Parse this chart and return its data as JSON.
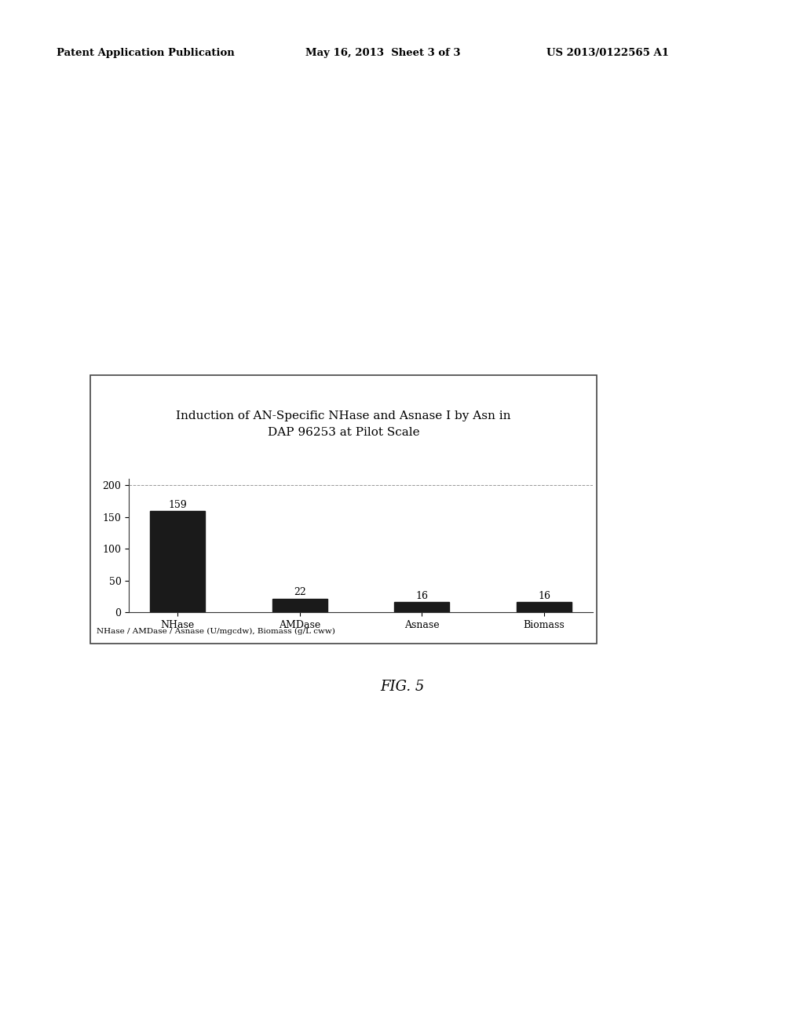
{
  "title_line1": "Induction of AN-Specific NHase and Asnase I by Asn in",
  "title_line2": "DAP 96253 at Pilot Scale",
  "categories": [
    "NHase",
    "AMDase",
    "Asnase",
    "Biomass"
  ],
  "values": [
    159,
    22,
    16,
    16
  ],
  "bar_color": "#1a1a1a",
  "bar_width": 0.45,
  "ylim": [
    0,
    210
  ],
  "yticks": [
    0,
    50,
    100,
    150,
    200
  ],
  "xlabel_note": "NHase / AMDase / Asnase (U/mgcdw), Biomass (g/L cww)",
  "title_fontsize": 11,
  "tick_fontsize": 9,
  "label_fontsize": 9,
  "note_fontsize": 7.5,
  "value_fontsize": 9,
  "fig_bg": "#ffffff",
  "chart_bg": "#ffffff",
  "outer_box_color": "#444444",
  "fig_width": 10.24,
  "fig_height": 13.2,
  "header_text_left": "Patent Application Publication",
  "header_text_mid": "May 16, 2013  Sheet 3 of 3",
  "header_text_right": "US 2013/0122565 A1",
  "fig_label": "FIG. 5"
}
